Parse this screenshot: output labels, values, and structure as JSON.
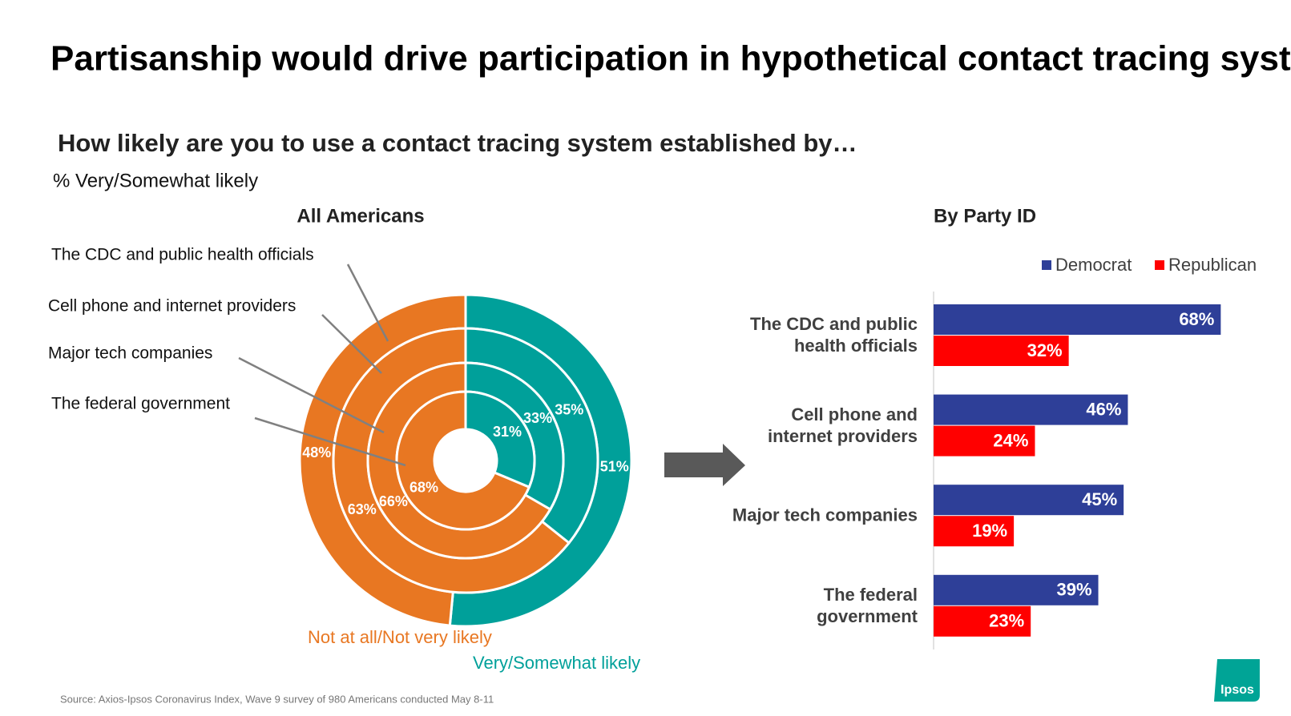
{
  "title": "Partisanship would drive participation in hypothetical contact tracing system",
  "subtitle": "How likely are you to use a contact tracing system established by…",
  "note": "% Very/Somewhat likely",
  "source": "Source: Axios-Ipsos Coronavirus Index, Wave 9 survey of 980 Americans conducted May 8-11",
  "logo": "Ipsos",
  "chart_data": [
    {
      "type": "pie",
      "title": "All Americans",
      "categories": [
        "The CDC and public health officials",
        "Cell phone and internet providers",
        "Major tech companies",
        "The federal government"
      ],
      "series": [
        {
          "name": "Very/Somewhat likely",
          "color": "#00a09a",
          "values": [
            51,
            35,
            33,
            31
          ],
          "value_labels": [
            "51%",
            "35%",
            "33%",
            "31%"
          ]
        },
        {
          "name": "Not at all/Not very likely",
          "color": "#e87722",
          "values": [
            48,
            63,
            66,
            68
          ],
          "value_labels": [
            "48%",
            "63%",
            "66%",
            "68%"
          ]
        }
      ]
    },
    {
      "type": "bar",
      "title": "By Party ID",
      "orientation": "horizontal",
      "legend": "top-right",
      "categories": [
        "The CDC and public\nhealth officials",
        "Cell phone and\ninternet providers",
        "Major tech companies",
        "The federal\ngovernment"
      ],
      "series": [
        {
          "name": "Democrat",
          "color": "#2e3f98",
          "values": [
            68,
            46,
            45,
            39
          ],
          "value_labels": [
            "68%",
            "46%",
            "45%",
            "39%"
          ]
        },
        {
          "name": "Republican",
          "color": "#ff0000",
          "values": [
            32,
            24,
            19,
            23
          ],
          "value_labels": [
            "32%",
            "24%",
            "19%",
            "23%"
          ]
        }
      ]
    }
  ]
}
